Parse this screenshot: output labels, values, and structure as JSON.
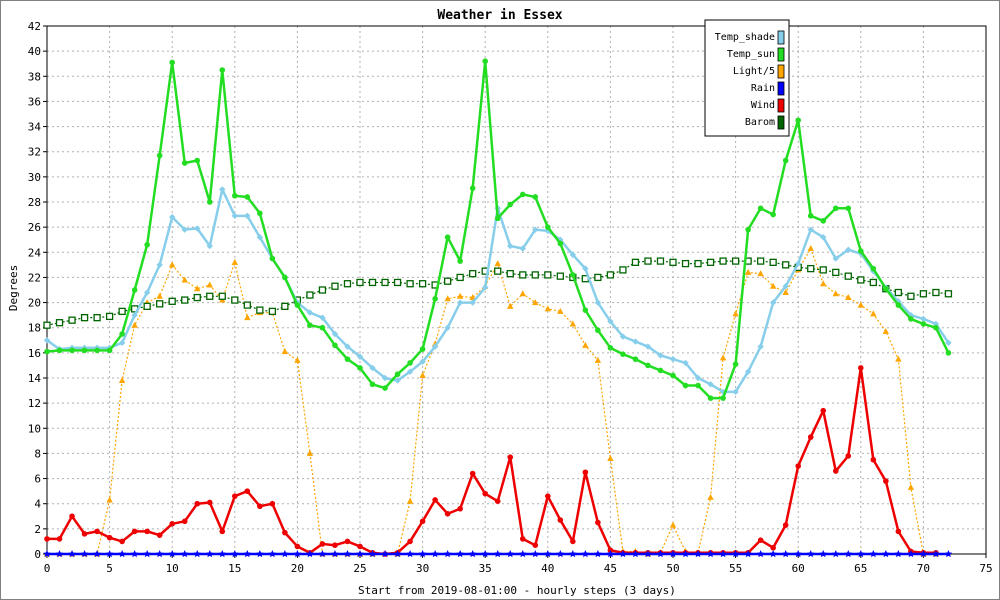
{
  "chart_data": {
    "type": "line",
    "title": "Weather in Essex",
    "xlabel": "Start from 2019-08-01:00 - hourly steps (3 days)",
    "ylabel": "Degrees",
    "xlim": [
      0,
      75
    ],
    "ylim": [
      0,
      42
    ],
    "xticks": [
      0,
      5,
      10,
      15,
      20,
      25,
      30,
      35,
      40,
      45,
      50,
      55,
      60,
      65,
      70,
      75
    ],
    "yticks": [
      0,
      2,
      4,
      6,
      8,
      10,
      12,
      14,
      16,
      18,
      20,
      22,
      24,
      26,
      28,
      30,
      32,
      34,
      36,
      38,
      40,
      42
    ],
    "grid": true,
    "legend_position": "top-right",
    "series": [
      {
        "name": "Temp_shade",
        "color": "#87ceeb",
        "marker": "diamond",
        "values": [
          17.0,
          16.3,
          16.4,
          16.4,
          16.4,
          16.4,
          16.8,
          19.0,
          20.8,
          23.0,
          26.8,
          25.8,
          25.9,
          24.5,
          29.0,
          26.9,
          26.9,
          25.2,
          23.5,
          22.0,
          20.0,
          19.2,
          18.8,
          17.5,
          16.5,
          15.7,
          14.8,
          14.0,
          13.8,
          14.5,
          15.3,
          16.5,
          18.0,
          20.0,
          20.0,
          21.2,
          27.5,
          24.5,
          24.3,
          25.8,
          25.7,
          25.0,
          23.8,
          22.7,
          20.0,
          18.5,
          17.3,
          16.9,
          16.5,
          15.8,
          15.5,
          15.2,
          14.0,
          13.5,
          12.9,
          12.9,
          14.5,
          16.5,
          20.0,
          21.3,
          23.1,
          25.8,
          25.2,
          23.5,
          24.2,
          23.9,
          22.5,
          21.2,
          20.1,
          19.0,
          18.7,
          18.3,
          16.8
        ]
      },
      {
        "name": "Temp_sun",
        "color": "#22dd22",
        "marker": "circle",
        "values": [
          16.1,
          16.2,
          16.2,
          16.2,
          16.2,
          16.2,
          17.5,
          21.0,
          24.6,
          31.7,
          39.1,
          31.1,
          31.3,
          28.0,
          38.5,
          28.5,
          28.4,
          27.1,
          23.5,
          22.0,
          19.8,
          18.2,
          18.0,
          16.6,
          15.5,
          14.8,
          13.5,
          13.2,
          14.3,
          15.2,
          16.3,
          20.3,
          25.2,
          23.3,
          29.1,
          39.2,
          26.7,
          27.8,
          28.6,
          28.4,
          26.0,
          24.7,
          22.2,
          19.4,
          17.8,
          16.4,
          15.9,
          15.5,
          15.0,
          14.6,
          14.2,
          13.4,
          13.4,
          12.4,
          12.4,
          15.1,
          25.8,
          27.5,
          27.0,
          31.3,
          34.5,
          26.9,
          26.5,
          27.5,
          27.5,
          24.1,
          22.7,
          21.1,
          19.8,
          18.7,
          18.3,
          18.0,
          16.0
        ]
      },
      {
        "name": "Light/5",
        "color": "#ffa500",
        "marker": "triangle",
        "values": [
          0.0,
          0.0,
          0.0,
          0.0,
          0.0,
          4.3,
          13.8,
          18.2,
          20.0,
          20.5,
          23.0,
          21.8,
          21.1,
          21.4,
          20.2,
          23.2,
          18.8,
          19.2,
          19.2,
          16.1,
          15.4,
          8.0,
          0.0,
          0.0,
          0.0,
          0.0,
          0.0,
          0.0,
          0.0,
          4.2,
          14.2,
          16.7,
          20.3,
          20.5,
          20.4,
          21.3,
          23.1,
          19.7,
          20.7,
          20.0,
          19.5,
          19.3,
          18.3,
          16.6,
          15.4,
          7.6,
          0.2,
          0.2,
          0.0,
          0.1,
          2.3,
          0.2,
          0.1,
          4.5,
          15.6,
          19.1,
          22.4,
          22.3,
          21.3,
          20.8,
          22.6,
          24.3,
          21.5,
          20.7,
          20.4,
          19.8,
          19.1,
          17.7,
          15.5,
          5.3,
          0.0,
          0.0
        ]
      },
      {
        "name": "Rain",
        "color": "#0000ff",
        "marker": "star",
        "values": [
          0,
          0,
          0,
          0,
          0,
          0,
          0,
          0,
          0,
          0,
          0,
          0,
          0,
          0,
          0,
          0,
          0,
          0,
          0,
          0,
          0,
          0,
          0,
          0,
          0,
          0,
          0,
          0,
          0,
          0,
          0,
          0,
          0,
          0,
          0,
          0,
          0,
          0,
          0,
          0,
          0,
          0,
          0,
          0,
          0,
          0,
          0,
          0,
          0,
          0,
          0,
          0,
          0,
          0,
          0,
          0,
          0,
          0,
          0,
          0,
          0,
          0,
          0,
          0,
          0,
          0,
          0,
          0,
          0,
          0,
          0,
          0,
          0
        ]
      },
      {
        "name": "Wind",
        "color": "#ee0000",
        "marker": "circle",
        "values": [
          1.2,
          1.2,
          3.0,
          1.6,
          1.8,
          1.3,
          1.0,
          1.8,
          1.8,
          1.5,
          2.4,
          2.6,
          4.0,
          4.1,
          1.8,
          4.6,
          5.0,
          3.8,
          4.0,
          1.7,
          0.6,
          0.1,
          0.8,
          0.7,
          1.0,
          0.6,
          0.1,
          0.0,
          0.1,
          1.0,
          2.6,
          4.3,
          3.2,
          3.6,
          6.4,
          4.8,
          4.2,
          7.7,
          1.2,
          0.7,
          4.6,
          2.7,
          1.0,
          6.5,
          2.5,
          0.3,
          0.1,
          0.1,
          0.1,
          0.1,
          0.1,
          0.1,
          0.1,
          0.1,
          0.1,
          0.1,
          0.1,
          1.1,
          0.5,
          2.3,
          7.0,
          9.3,
          11.4,
          6.6,
          7.8,
          14.8,
          7.5,
          5.8,
          1.8,
          0.2,
          0.1,
          0.1
        ]
      },
      {
        "name": "Barom",
        "color": "#006400",
        "marker": "square",
        "values": [
          18.2,
          18.4,
          18.6,
          18.8,
          18.8,
          18.9,
          19.3,
          19.5,
          19.7,
          19.9,
          20.1,
          20.2,
          20.4,
          20.5,
          20.5,
          20.2,
          19.8,
          19.4,
          19.3,
          19.7,
          20.2,
          20.6,
          21.0,
          21.3,
          21.5,
          21.6,
          21.6,
          21.6,
          21.6,
          21.5,
          21.5,
          21.4,
          21.7,
          22.0,
          22.3,
          22.5,
          22.5,
          22.3,
          22.2,
          22.2,
          22.2,
          22.1,
          22.0,
          21.9,
          22.0,
          22.2,
          22.6,
          23.2,
          23.3,
          23.3,
          23.2,
          23.1,
          23.1,
          23.2,
          23.3,
          23.3,
          23.3,
          23.3,
          23.2,
          23.0,
          22.8,
          22.7,
          22.6,
          22.4,
          22.1,
          21.8,
          21.6,
          21.1,
          20.8,
          20.5,
          20.7,
          20.8,
          20.7
        ]
      }
    ]
  }
}
